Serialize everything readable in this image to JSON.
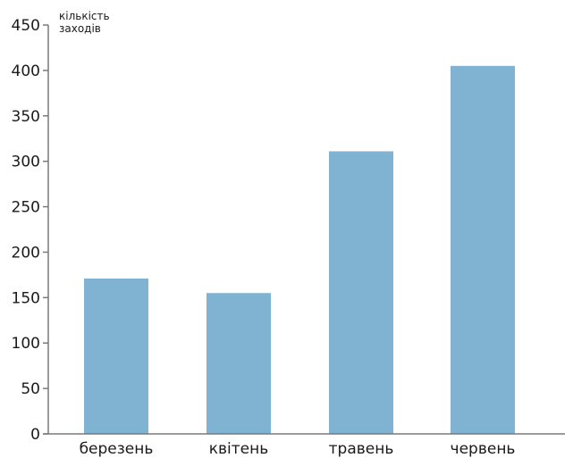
{
  "chart_data": {
    "type": "bar",
    "title": "",
    "xlabel": "",
    "ylabel_lines": [
      "кількість",
      "заходів"
    ],
    "categories": [
      "березень",
      "квітень",
      "травень",
      "червень"
    ],
    "values": [
      171,
      155,
      311,
      405
    ],
    "yticks": [
      0,
      50,
      100,
      150,
      200,
      250,
      300,
      350,
      400,
      450
    ],
    "ylim": [
      0,
      450
    ],
    "grid": false,
    "legend": "none",
    "colors": {
      "bar": "#80b3d1",
      "axis": "#7a7a7a",
      "text": "#1a1a1a"
    }
  }
}
